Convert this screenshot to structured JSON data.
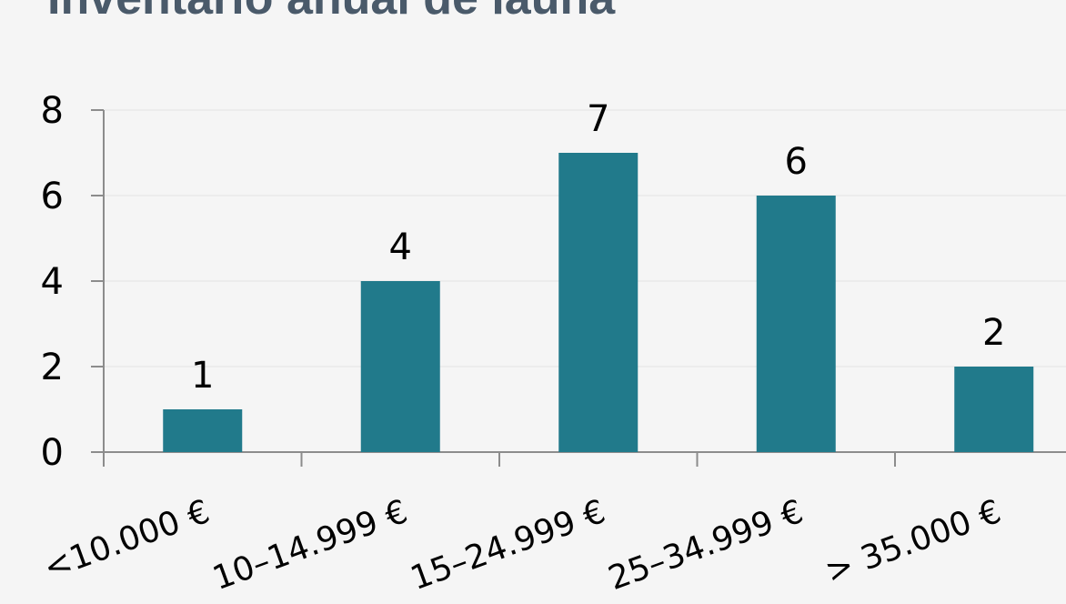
{
  "chart_data": {
    "type": "bar",
    "title": "Inventario anual de lauña",
    "xlabel": "",
    "ylabel": "",
    "categories": [
      "<10.000 €",
      "10–14.999 €",
      "15–24.999 €",
      "25–34.999 €",
      "> 35.000 €"
    ],
    "values": [
      1,
      4,
      7,
      6,
      2
    ],
    "ylim": [
      0,
      8
    ],
    "yticks": [
      "0",
      "2",
      "4",
      "6",
      "8"
    ],
    "bar_color": "#217a8b",
    "grid": true,
    "legend": "none"
  }
}
